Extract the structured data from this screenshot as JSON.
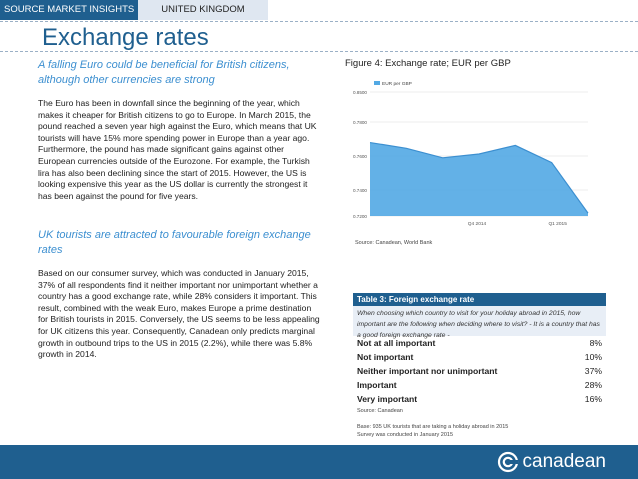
{
  "header": {
    "section_label": "SOURCE MARKET INSIGHTS",
    "country_label": "UNITED KINGDOM"
  },
  "page": {
    "title": "Exchange rates"
  },
  "left": {
    "subhead1": "A falling Euro could be beneficial for British citizens, although other currencies are strong",
    "para1": "The Euro has been in downfall since the beginning of the year, which makes it cheaper for British citizens to go to Europe. In March 2015, the pound reached a seven year high against the Euro, which means that UK tourists will have 15% more spending power in Europe than a year ago. Furthermore, the pound has made significant gains against other European currencies outside of the Eurozone. For example, the Turkish lira has also been declining since the start of 2015. However, the US is looking expensive this year as the US dollar is currently the strongest it has been against the pound for five years.",
    "subhead2": "UK tourists are attracted to favourable foreign exchange rates",
    "para2": "Based on our consumer survey, which was conducted in January 2015, 37% of all respondents find it neither important nor unimportant whether a country has a good exchange rate, while 28% considers it important. This result, combined with the weak Euro, makes Europe a prime destination for British tourists in 2015. Conversely, the US seems to be less appealing for UK citizens this year. Consequently, Canadean only predicts marginal growth in outbound trips to the US in 2015 (2.2%), while there was 5.8% growth in 2014."
  },
  "figure": {
    "title": "Figure 4: Exchange rate; EUR per GBP",
    "source": "Source: Canadean, World Bank"
  },
  "chart_data": {
    "type": "area",
    "title": "",
    "legend": [
      "EUR per GBP"
    ],
    "legend_placement": "top-left",
    "x_tick_labels": [
      "Q4 2014",
      "Q1 2015"
    ],
    "y_tick_labels": [
      "0.8500",
      "0.7800",
      "0.7600",
      "0.7400",
      "0.7200"
    ],
    "ylim": [
      0.72,
      0.85
    ],
    "series": [
      {
        "name": "EUR per GBP",
        "x": [
          0,
          1,
          2,
          3,
          4,
          5,
          6
        ],
        "values": [
          0.797,
          0.791,
          0.781,
          0.785,
          0.794,
          0.776,
          0.723
        ]
      }
    ],
    "colors": {
      "fill": "#52a9e4",
      "line": "#3c8fd0",
      "grid": "#dcdcdc"
    }
  },
  "table": {
    "title": "Table 3: Foreign exchange rate",
    "question": "When choosing which country to visit for your holiday abroad in 2015, how important are the following when deciding where to visit? - It is a country that has a good foreign exchange rate -",
    "rows": [
      {
        "label": "Not at all important",
        "value": "8%"
      },
      {
        "label": "Not important",
        "value": "10%"
      },
      {
        "label": "Neither important nor unimportant",
        "value": "37%"
      },
      {
        "label": "Important",
        "value": "28%"
      },
      {
        "label": "Very important",
        "value": "16%"
      }
    ],
    "source": "Source: Canadean",
    "base_line1": "Base: 935 UK tourists that are taking a holiday abroad in 2015",
    "base_line2": "Survey was conducted in January 2015"
  },
  "footer": {
    "brand": "canadean",
    "logo_icon": "canadean-logo-icon",
    "color": "#1f5f8f"
  }
}
